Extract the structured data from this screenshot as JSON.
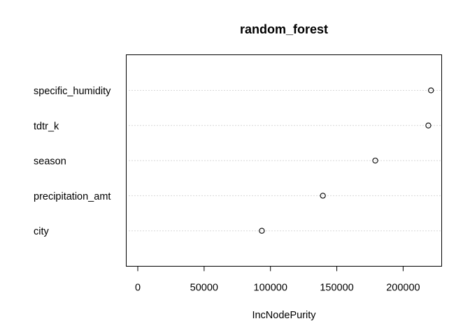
{
  "chart_data": {
    "type": "scatter",
    "subtype": "dotchart",
    "title": "random_forest",
    "xlabel": "IncNodePurity",
    "ylabel": "",
    "xlim": [
      0,
      230000
    ],
    "xticks": [
      0,
      50000,
      100000,
      150000,
      200000
    ],
    "xtick_labels": [
      "0",
      "50000",
      "100000",
      "150000",
      "200000"
    ],
    "categories": [
      "specific_humidity",
      "tdtr_k",
      "season",
      "precipitation_amt",
      "city"
    ],
    "values": [
      221000,
      219000,
      179000,
      139500,
      93500
    ],
    "grid": "dotted horizontal guide lines per category",
    "marker": "open circle"
  }
}
